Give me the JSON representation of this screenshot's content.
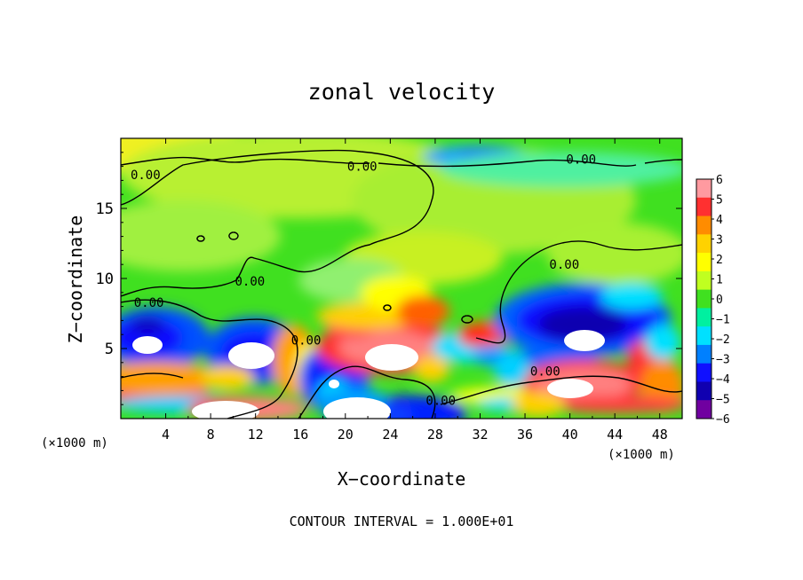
{
  "chart_data": {
    "type": "heatmap",
    "title": "zonal velocity",
    "xlabel": "X−coordinate",
    "ylabel": "Z−coordinate",
    "x_unit_left": "(×1000 m)",
    "x_unit_right": "(×1000 m)",
    "footer": "CONTOUR INTERVAL = 1.000E+01",
    "xlim": [
      0,
      50
    ],
    "ylim": [
      0,
      20
    ],
    "x_ticks": [
      4,
      8,
      12,
      16,
      20,
      24,
      28,
      32,
      36,
      40,
      44,
      48
    ],
    "x_tick_labels": [
      "4",
      "8",
      "12",
      "16",
      "20",
      "24",
      "28",
      "32",
      "36",
      "40",
      "44",
      "48"
    ],
    "y_ticks": [
      5,
      10,
      15
    ],
    "y_tick_labels": [
      "5",
      "10",
      "15"
    ],
    "colorbar": {
      "range": [
        -6,
        6
      ],
      "tick_labels": [
        "6",
        "5",
        "4",
        "3",
        "2",
        "1",
        "0",
        "−1",
        "−2",
        "−3",
        "−4",
        "−5",
        "−6"
      ],
      "colors": [
        "#ff9aa0",
        "#ff3030",
        "#ff8c00",
        "#ffd200",
        "#ffff00",
        "#c0ff20",
        "#40e020",
        "#00f0a0",
        "#00e0ff",
        "#0080ff",
        "#1010ff",
        "#1000b0",
        "#7000a0"
      ]
    },
    "contour_labels": [
      {
        "text": "0.00",
        "x": 2.2,
        "y": 17.4
      },
      {
        "text": "0.00",
        "x": 21.5,
        "y": 18.0
      },
      {
        "text": "0.00",
        "x": 41.0,
        "y": 18.5
      },
      {
        "text": "0.00",
        "x": 11.5,
        "y": 9.8
      },
      {
        "text": "0.00",
        "x": 2.5,
        "y": 8.3
      },
      {
        "text": "0.00",
        "x": 16.5,
        "y": 5.6
      },
      {
        "text": "0.00",
        "x": 39.5,
        "y": 11.0
      },
      {
        "text": "0.00",
        "x": 37.8,
        "y": 3.4
      },
      {
        "text": "0.00",
        "x": 28.5,
        "y": 1.3
      }
    ]
  }
}
